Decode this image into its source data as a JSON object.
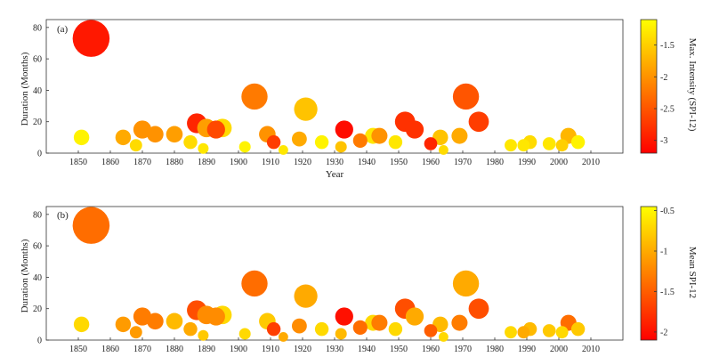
{
  "chart_data": [
    {
      "type": "scatter",
      "panel_label": "(a)",
      "xlabel": "Year",
      "ylabel": "Duration (Months)",
      "xlim": [
        1840,
        2020
      ],
      "ylim": [
        0,
        85
      ],
      "xticks": [
        1850,
        1860,
        1870,
        1880,
        1890,
        1900,
        1910,
        1920,
        1930,
        1940,
        1950,
        1960,
        1970,
        1980,
        1990,
        2000,
        2010
      ],
      "yticks": [
        0,
        20,
        40,
        60,
        80
      ],
      "colorbar": {
        "label": "Max. Intensity (SPI-12)",
        "range": [
          -3.2,
          -1.1
        ],
        "ticks": [
          -1.5,
          -2,
          -2.5,
          -3
        ],
        "tick_labels": [
          "-1.5",
          "-2",
          "-2.5",
          "-3"
        ],
        "colors": [
          "#ff0000",
          "#ff8000",
          "#ffff00"
        ]
      },
      "points": [
        {
          "x": 1851,
          "y": 10,
          "c": -1.2
        },
        {
          "x": 1854,
          "y": 73,
          "c": -3.0
        },
        {
          "x": 1864,
          "y": 10,
          "c": -1.8
        },
        {
          "x": 1868,
          "y": 5,
          "c": -1.4
        },
        {
          "x": 1870,
          "y": 15,
          "c": -2.0
        },
        {
          "x": 1874,
          "y": 12,
          "c": -2.0
        },
        {
          "x": 1880,
          "y": 12,
          "c": -1.9
        },
        {
          "x": 1885,
          "y": 7,
          "c": -1.4
        },
        {
          "x": 1887,
          "y": 19,
          "c": -2.9
        },
        {
          "x": 1889,
          "y": 3,
          "c": -1.3
        },
        {
          "x": 1890,
          "y": 16,
          "c": -1.9
        },
        {
          "x": 1893,
          "y": 15,
          "c": -2.6
        },
        {
          "x": 1895,
          "y": 16,
          "c": -1.4
        },
        {
          "x": 1902,
          "y": 4,
          "c": -1.2
        },
        {
          "x": 1905,
          "y": 36,
          "c": -2.2
        },
        {
          "x": 1909,
          "y": 12,
          "c": -2.0
        },
        {
          "x": 1911,
          "y": 7,
          "c": -2.7
        },
        {
          "x": 1914,
          "y": 2,
          "c": -1.3
        },
        {
          "x": 1919,
          "y": 9,
          "c": -1.8
        },
        {
          "x": 1921,
          "y": 28,
          "c": -1.6
        },
        {
          "x": 1926,
          "y": 7,
          "c": -1.2
        },
        {
          "x": 1932,
          "y": 4,
          "c": -1.6
        },
        {
          "x": 1933,
          "y": 15,
          "c": -3.1
        },
        {
          "x": 1938,
          "y": 8,
          "c": -2.2
        },
        {
          "x": 1942,
          "y": 11,
          "c": -1.3
        },
        {
          "x": 1944,
          "y": 11,
          "c": -2.0
        },
        {
          "x": 1949,
          "y": 7,
          "c": -1.3
        },
        {
          "x": 1952,
          "y": 20,
          "c": -2.8
        },
        {
          "x": 1955,
          "y": 15,
          "c": -2.8
        },
        {
          "x": 1960,
          "y": 6,
          "c": -2.9
        },
        {
          "x": 1963,
          "y": 10,
          "c": -1.6
        },
        {
          "x": 1964,
          "y": 2,
          "c": -1.4
        },
        {
          "x": 1969,
          "y": 11,
          "c": -1.8
        },
        {
          "x": 1971,
          "y": 36,
          "c": -2.5
        },
        {
          "x": 1975,
          "y": 20,
          "c": -2.7
        },
        {
          "x": 1985,
          "y": 5,
          "c": -1.3
        },
        {
          "x": 1989,
          "y": 5,
          "c": -1.3
        },
        {
          "x": 1991,
          "y": 7,
          "c": -1.4
        },
        {
          "x": 1997,
          "y": 6,
          "c": -1.3
        },
        {
          "x": 2001,
          "y": 5,
          "c": -1.5
        },
        {
          "x": 2003,
          "y": 11,
          "c": -1.7
        },
        {
          "x": 2006,
          "y": 7,
          "c": -1.2
        }
      ]
    },
    {
      "type": "scatter",
      "panel_label": "(b)",
      "xlabel": "",
      "ylabel": "Duration (Months)",
      "xlim": [
        1840,
        2020
      ],
      "ylim": [
        0,
        85
      ],
      "xticks": [
        1850,
        1860,
        1870,
        1880,
        1890,
        1900,
        1910,
        1920,
        1930,
        1940,
        1950,
        1960,
        1970,
        1980,
        1990,
        2000,
        2010
      ],
      "yticks": [
        0,
        20,
        40,
        60,
        80
      ],
      "colorbar": {
        "label": "Mean SPI-12",
        "range": [
          -2.1,
          -0.45
        ],
        "ticks": [
          -0.5,
          -1,
          -1.5,
          -2
        ],
        "tick_labels": [
          "-0.5",
          "-1",
          "-1.5",
          "-2"
        ],
        "colors": [
          "#ff0000",
          "#ff8000",
          "#ffff00"
        ]
      },
      "points": [
        {
          "x": 1851,
          "y": 10,
          "c": -0.7
        },
        {
          "x": 1854,
          "y": 73,
          "c": -1.4
        },
        {
          "x": 1864,
          "y": 10,
          "c": -1.1
        },
        {
          "x": 1868,
          "y": 5,
          "c": -1.1
        },
        {
          "x": 1870,
          "y": 15,
          "c": -1.3
        },
        {
          "x": 1874,
          "y": 12,
          "c": -1.3
        },
        {
          "x": 1880,
          "y": 12,
          "c": -0.9
        },
        {
          "x": 1885,
          "y": 7,
          "c": -1.0
        },
        {
          "x": 1887,
          "y": 19,
          "c": -1.6
        },
        {
          "x": 1889,
          "y": 3,
          "c": -0.8
        },
        {
          "x": 1890,
          "y": 16,
          "c": -1.2
        },
        {
          "x": 1893,
          "y": 15,
          "c": -1.2
        },
        {
          "x": 1895,
          "y": 16,
          "c": -0.7
        },
        {
          "x": 1902,
          "y": 4,
          "c": -0.7
        },
        {
          "x": 1905,
          "y": 36,
          "c": -1.4
        },
        {
          "x": 1909,
          "y": 12,
          "c": -0.8
        },
        {
          "x": 1911,
          "y": 7,
          "c": -1.7
        },
        {
          "x": 1914,
          "y": 2,
          "c": -1.0
        },
        {
          "x": 1919,
          "y": 9,
          "c": -1.2
        },
        {
          "x": 1921,
          "y": 28,
          "c": -1.0
        },
        {
          "x": 1926,
          "y": 7,
          "c": -0.7
        },
        {
          "x": 1932,
          "y": 4,
          "c": -0.9
        },
        {
          "x": 1933,
          "y": 15,
          "c": -2.0
        },
        {
          "x": 1938,
          "y": 8,
          "c": -1.4
        },
        {
          "x": 1942,
          "y": 11,
          "c": -0.7
        },
        {
          "x": 1944,
          "y": 11,
          "c": -1.3
        },
        {
          "x": 1949,
          "y": 7,
          "c": -0.7
        },
        {
          "x": 1952,
          "y": 20,
          "c": -1.6
        },
        {
          "x": 1955,
          "y": 15,
          "c": -1.0
        },
        {
          "x": 1960,
          "y": 6,
          "c": -1.5
        },
        {
          "x": 1963,
          "y": 10,
          "c": -0.9
        },
        {
          "x": 1964,
          "y": 2,
          "c": -0.7
        },
        {
          "x": 1969,
          "y": 11,
          "c": -1.3
        },
        {
          "x": 1971,
          "y": 36,
          "c": -1.0
        },
        {
          "x": 1975,
          "y": 20,
          "c": -1.6
        },
        {
          "x": 1985,
          "y": 5,
          "c": -0.7
        },
        {
          "x": 1989,
          "y": 5,
          "c": -1.0
        },
        {
          "x": 1991,
          "y": 7,
          "c": -0.9
        },
        {
          "x": 1997,
          "y": 6,
          "c": -0.8
        },
        {
          "x": 2001,
          "y": 5,
          "c": -0.7
        },
        {
          "x": 2003,
          "y": 11,
          "c": -1.4
        },
        {
          "x": 2006,
          "y": 7,
          "c": -0.8
        }
      ]
    }
  ]
}
